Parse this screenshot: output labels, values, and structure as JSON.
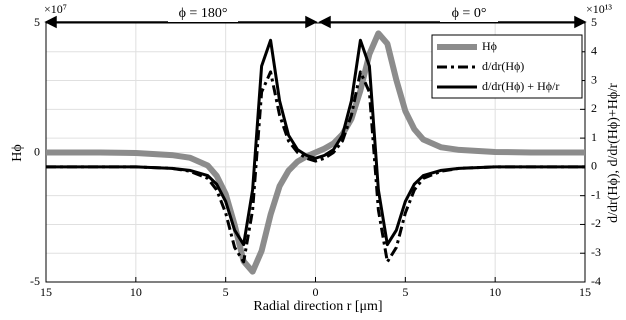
{
  "chart_data": {
    "type": "line",
    "x_label": "Radial direction r [μm]",
    "y_label": "Hϕ",
    "y2_label": "d/dr(Hϕ), d/dr(Hϕ)+Hϕ/r",
    "y_multiplier": "×10⁷",
    "y2_multiplier": "×10¹³",
    "annotations": [
      "ϕ = 180°",
      "ϕ = 0°"
    ],
    "x": [
      -15,
      -12,
      -10,
      -8,
      -7,
      -6,
      -5.5,
      -5,
      -4.5,
      -4,
      -3.5,
      -3,
      -2.5,
      -2,
      -1.5,
      -1,
      -0.5,
      0,
      0.5,
      1,
      1.5,
      2,
      2.5,
      3,
      3.5,
      4,
      4.5,
      5,
      5.5,
      6,
      7,
      8,
      10,
      12,
      15
    ],
    "series": [
      {
        "name": "Hϕ",
        "color": "#8c8c8c",
        "axis": "y",
        "line_width": 6,
        "line_style": "solid",
        "values": [
          0,
          0,
          -0.02,
          -0.1,
          -0.2,
          -0.5,
          -0.9,
          -1.6,
          -2.8,
          -4.2,
          -4.6,
          -3.8,
          -2.4,
          -1.3,
          -0.7,
          -0.35,
          -0.15,
          0,
          0.15,
          0.35,
          0.7,
          1.3,
          2.4,
          3.8,
          4.6,
          4.2,
          2.8,
          1.6,
          0.9,
          0.5,
          0.2,
          0.1,
          0.02,
          0,
          0
        ]
      },
      {
        "name": "d/dr(Hϕ)",
        "color": "#000000",
        "axis": "y2",
        "line_width": 3,
        "line_style": "dash-dot",
        "values": [
          0,
          0,
          0,
          -0.05,
          -0.15,
          -0.4,
          -0.8,
          -1.6,
          -2.8,
          -3.3,
          -1.5,
          2.6,
          3.3,
          1.8,
          0.9,
          0.5,
          0.3,
          0.2,
          0.3,
          0.5,
          0.9,
          1.8,
          3.3,
          2.6,
          -1.5,
          -3.3,
          -2.8,
          -1.6,
          -0.8,
          -0.4,
          -0.15,
          -0.05,
          0,
          0,
          0
        ]
      },
      {
        "name": "d/dr(Hϕ) + Hϕ/r",
        "color": "#000000",
        "axis": "y2",
        "line_width": 3,
        "line_style": "solid",
        "values": [
          0,
          0,
          0,
          -0.05,
          -0.12,
          -0.3,
          -0.6,
          -1.2,
          -2.2,
          -2.7,
          -0.8,
          3.5,
          4.4,
          2.3,
          1.1,
          0.6,
          0.4,
          0.3,
          0.4,
          0.6,
          1.1,
          2.3,
          4.4,
          3.5,
          -0.8,
          -2.7,
          -2.2,
          -1.2,
          -0.6,
          -0.3,
          -0.12,
          -0.05,
          0,
          0,
          0
        ]
      }
    ],
    "xlim": [
      -15,
      15
    ],
    "xticks": [
      {
        "value": -15,
        "label": "15"
      },
      {
        "value": -10,
        "label": "10"
      },
      {
        "value": -5,
        "label": "5"
      },
      0,
      5,
      10,
      15
    ],
    "ylim": [
      -5,
      5
    ],
    "yticks": [
      -5,
      0,
      5
    ],
    "y2lim": [
      -4,
      5
    ],
    "y2ticks": [
      -4,
      -3,
      -2,
      -1,
      0,
      1,
      2,
      3,
      4,
      5
    ],
    "grid": true,
    "legend": "upper right"
  }
}
